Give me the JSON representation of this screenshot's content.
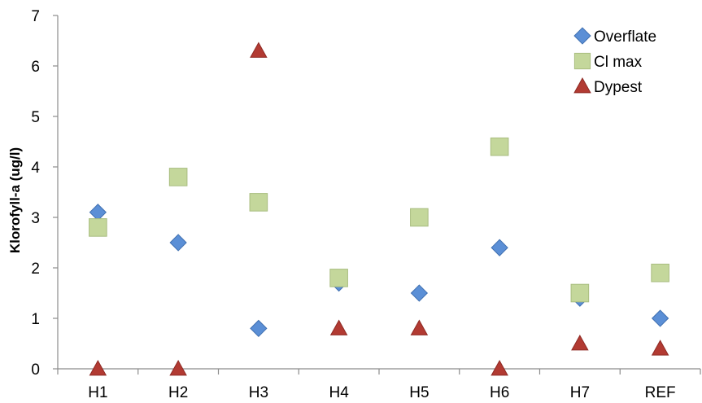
{
  "chart_data": {
    "type": "scatter",
    "categories": [
      "H1",
      "H2",
      "H3",
      "H4",
      "H5",
      "H6",
      "H7",
      "REF"
    ],
    "ylabel": "Klorofyll-a (ug/l)",
    "ylim": [
      0,
      7
    ],
    "yticks": [
      "0",
      "1",
      "2",
      "3",
      "4",
      "5",
      "6",
      "7"
    ],
    "grid": false,
    "legend_position": "top-right",
    "series": [
      {
        "name": "Overflate",
        "marker": "diamond",
        "color": "#5B8FD6",
        "stroke": "#3F6FB0",
        "values": [
          3.1,
          2.5,
          0.8,
          1.7,
          1.5,
          2.4,
          1.4,
          1.0
        ]
      },
      {
        "name": "Cl max",
        "marker": "square",
        "color": "#C4D79B",
        "stroke": "#A9BD80",
        "values": [
          2.8,
          3.8,
          3.3,
          1.8,
          3.0,
          4.4,
          1.5,
          1.9
        ]
      },
      {
        "name": "Dypest",
        "marker": "triangle",
        "color": "#B23A32",
        "stroke": "#8E2A24",
        "values": [
          0.0,
          0.0,
          6.3,
          0.8,
          0.8,
          0.0,
          0.5,
          0.4
        ]
      }
    ]
  }
}
